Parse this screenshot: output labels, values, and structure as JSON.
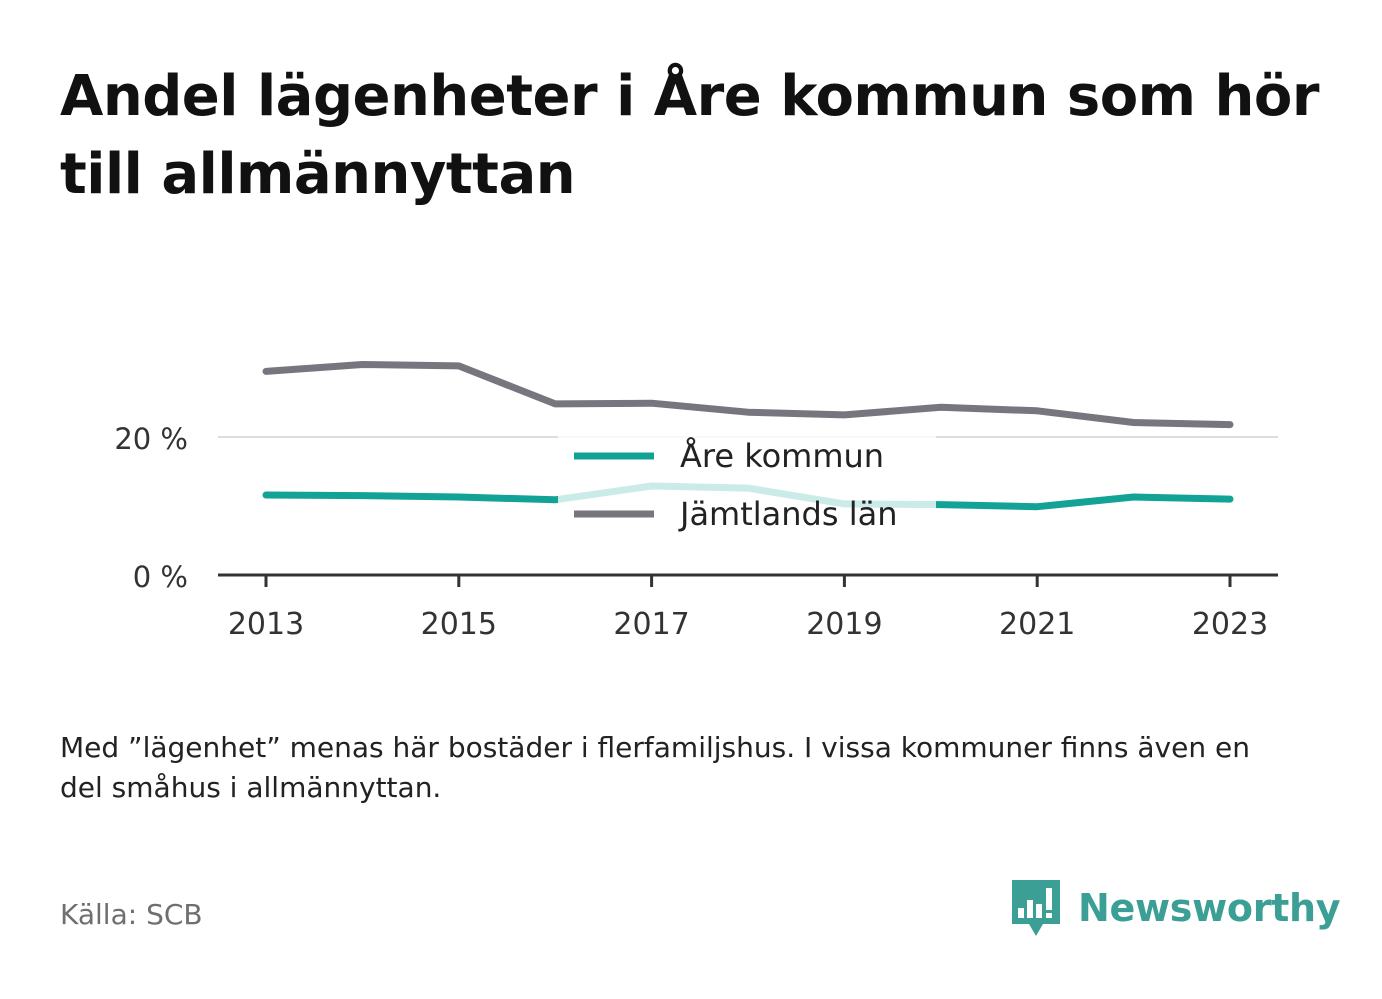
{
  "title": "Andel lägenheter i Åre kommun som hör till allmännyttan",
  "note": "Med ”lägenhet” menas här bostäder i flerfamiljshus. I vissa kommuner finns även en del småhus i allmännyttan.",
  "source": "Källa: SCB",
  "brand": {
    "name": "Newsworthy",
    "icon": "newsworthy-logo-icon",
    "color": "#3c9f95"
  },
  "chart_data": {
    "type": "line",
    "x": [
      2013,
      2014,
      2015,
      2016,
      2017,
      2018,
      2019,
      2020,
      2021,
      2022,
      2023
    ],
    "x_tick_labels": [
      "2013",
      "2015",
      "2017",
      "2019",
      "2021",
      "2023"
    ],
    "x_tick_values": [
      2013,
      2015,
      2017,
      2019,
      2021,
      2023
    ],
    "y_tick_labels": [
      "0 %",
      "20 %"
    ],
    "y_tick_values": [
      0,
      20
    ],
    "ylim": [
      0,
      30
    ],
    "grid": true,
    "legend_position": "center",
    "series": [
      {
        "name": "Åre kommun",
        "color": "#13a396",
        "values": [
          11.6,
          11.5,
          11.3,
          10.9,
          12.9,
          12.6,
          10.3,
          10.2,
          9.9,
          11.3,
          11.0
        ]
      },
      {
        "name": "Jämtlands län",
        "color": "#76767e",
        "values": [
          29.5,
          30.5,
          30.3,
          24.8,
          24.9,
          23.6,
          23.2,
          24.3,
          23.8,
          22.1,
          21.8
        ]
      }
    ]
  }
}
